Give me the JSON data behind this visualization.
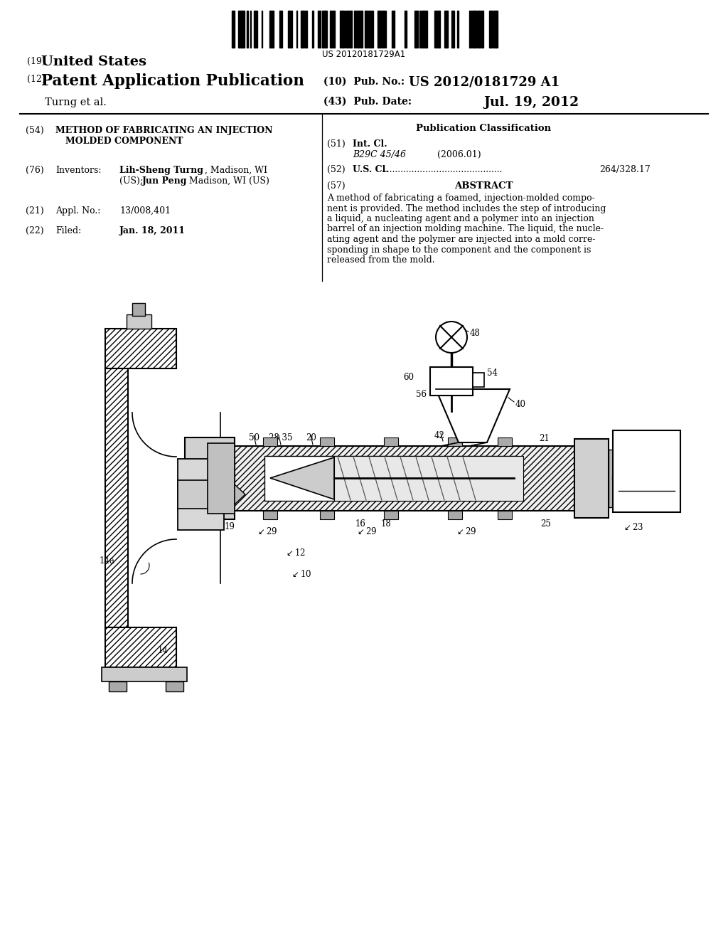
{
  "background_color": "#ffffff",
  "barcode_text": "US 20120181729A1",
  "patent_number": "US 2012/0181729 A1",
  "pub_date": "Jul. 19, 2012",
  "abstract_lines": [
    "A method of fabricating a foamed, injection-molded compo-",
    "nent is provided. The method includes the step of introducing",
    "a liquid, a nucleating agent and a polymer into an injection",
    "barrel of an injection molding machine. The liquid, the nucle-",
    "ating agent and the polymer are injected into a mold corre-",
    "sponding in shape to the component and the component is",
    "released from the mold."
  ]
}
